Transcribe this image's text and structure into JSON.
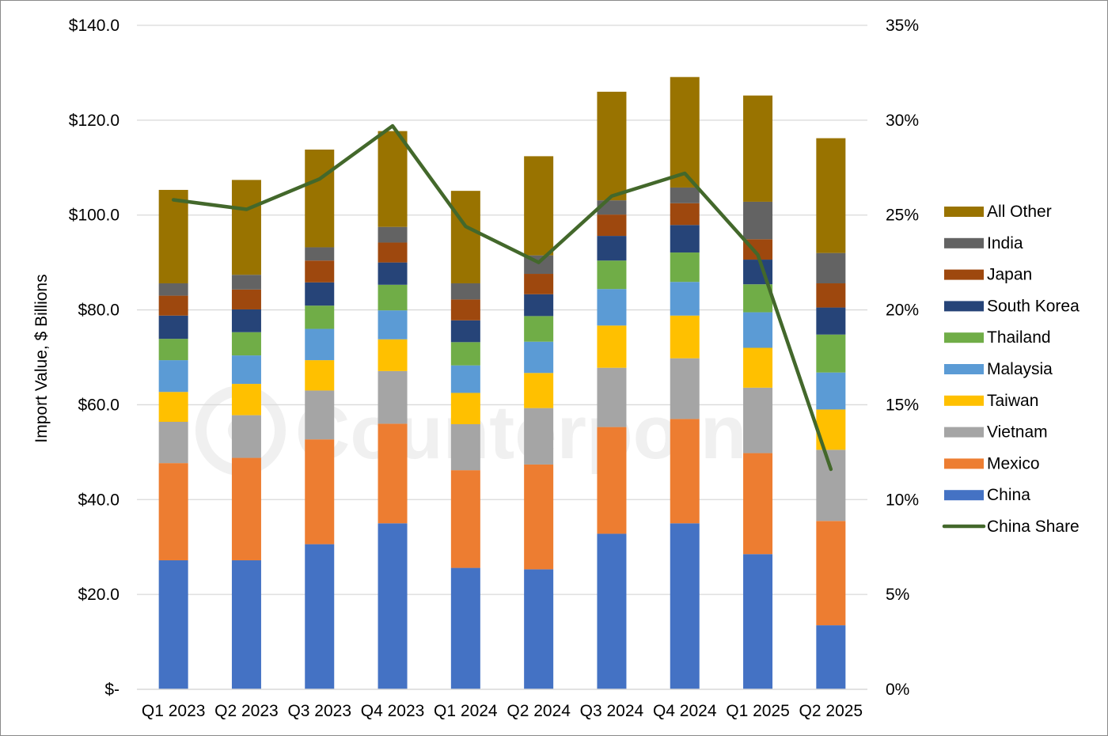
{
  "chart_data": {
    "type": "bar",
    "stacked": true,
    "watermark": "Counterpoint",
    "categories": [
      "Q1 2023",
      "Q2 2023",
      "Q3 2023",
      "Q4 2023",
      "Q1 2024",
      "Q2 2024",
      "Q3 2024",
      "Q4 2024",
      "Q1 2025",
      "Q2 2025"
    ],
    "ylabel": "Import Value, $ Billions",
    "ylim": [
      0,
      140
    ],
    "y_ticks": [
      0,
      20,
      40,
      60,
      80,
      100,
      120,
      140
    ],
    "y_tick_labels": [
      "$-",
      "$20.0",
      "$40.0",
      "$60.0",
      "$80.0",
      "$100.0",
      "$120.0",
      "$140.0"
    ],
    "y2lim": [
      0,
      35
    ],
    "y2_ticks": [
      0,
      5,
      10,
      15,
      20,
      25,
      30,
      35
    ],
    "y2_tick_labels": [
      "0%",
      "5%",
      "10%",
      "15%",
      "20%",
      "25%",
      "30%",
      "35%"
    ],
    "grid": true,
    "legend_position": "right",
    "series": [
      {
        "name": "China",
        "color": "#4472c4",
        "values": [
          27.2,
          27.2,
          30.6,
          35.0,
          25.6,
          25.3,
          32.8,
          35.0,
          28.5,
          13.5
        ]
      },
      {
        "name": "Mexico",
        "color": "#ed7d31",
        "values": [
          20.5,
          21.6,
          22.1,
          21.0,
          20.6,
          22.1,
          22.5,
          22.0,
          21.3,
          22.0
        ]
      },
      {
        "name": "Vietnam",
        "color": "#a5a5a5",
        "values": [
          8.7,
          9.0,
          10.3,
          11.1,
          9.7,
          11.9,
          12.5,
          12.8,
          13.8,
          15.0
        ]
      },
      {
        "name": "Taiwan",
        "color": "#ffc000",
        "values": [
          6.3,
          6.6,
          6.4,
          6.7,
          6.6,
          7.4,
          8.9,
          9.0,
          8.4,
          8.5
        ]
      },
      {
        "name": "Malaysia",
        "color": "#5b9bd5",
        "values": [
          6.7,
          6.0,
          6.6,
          6.1,
          5.8,
          6.6,
          7.7,
          7.1,
          7.5,
          7.8
        ]
      },
      {
        "name": "Thailand",
        "color": "#70ad47",
        "values": [
          4.5,
          4.9,
          4.9,
          5.4,
          4.9,
          5.4,
          6.0,
          6.2,
          5.9,
          8.0
        ]
      },
      {
        "name": "South Korea",
        "color": "#264478",
        "values": [
          4.9,
          4.8,
          4.9,
          4.7,
          4.6,
          4.6,
          5.2,
          5.8,
          5.2,
          5.7
        ]
      },
      {
        "name": "Japan",
        "color": "#9e480e",
        "values": [
          4.2,
          4.2,
          4.6,
          4.2,
          4.4,
          4.3,
          4.5,
          4.6,
          4.3,
          5.1
        ]
      },
      {
        "name": "India",
        "color": "#636363",
        "values": [
          2.6,
          3.1,
          2.8,
          3.3,
          3.4,
          3.9,
          3.0,
          3.3,
          7.9,
          6.4
        ]
      },
      {
        "name": "All Other",
        "color": "#997300",
        "values": [
          19.7,
          20.0,
          20.6,
          20.2,
          19.5,
          20.9,
          22.9,
          23.3,
          22.4,
          24.2
        ]
      }
    ],
    "line_series": {
      "name": "China Share",
      "color": "#43682b",
      "axis": "right",
      "values": [
        25.8,
        25.3,
        26.9,
        29.7,
        24.4,
        22.5,
        26.0,
        27.2,
        22.9,
        11.6
      ]
    }
  }
}
